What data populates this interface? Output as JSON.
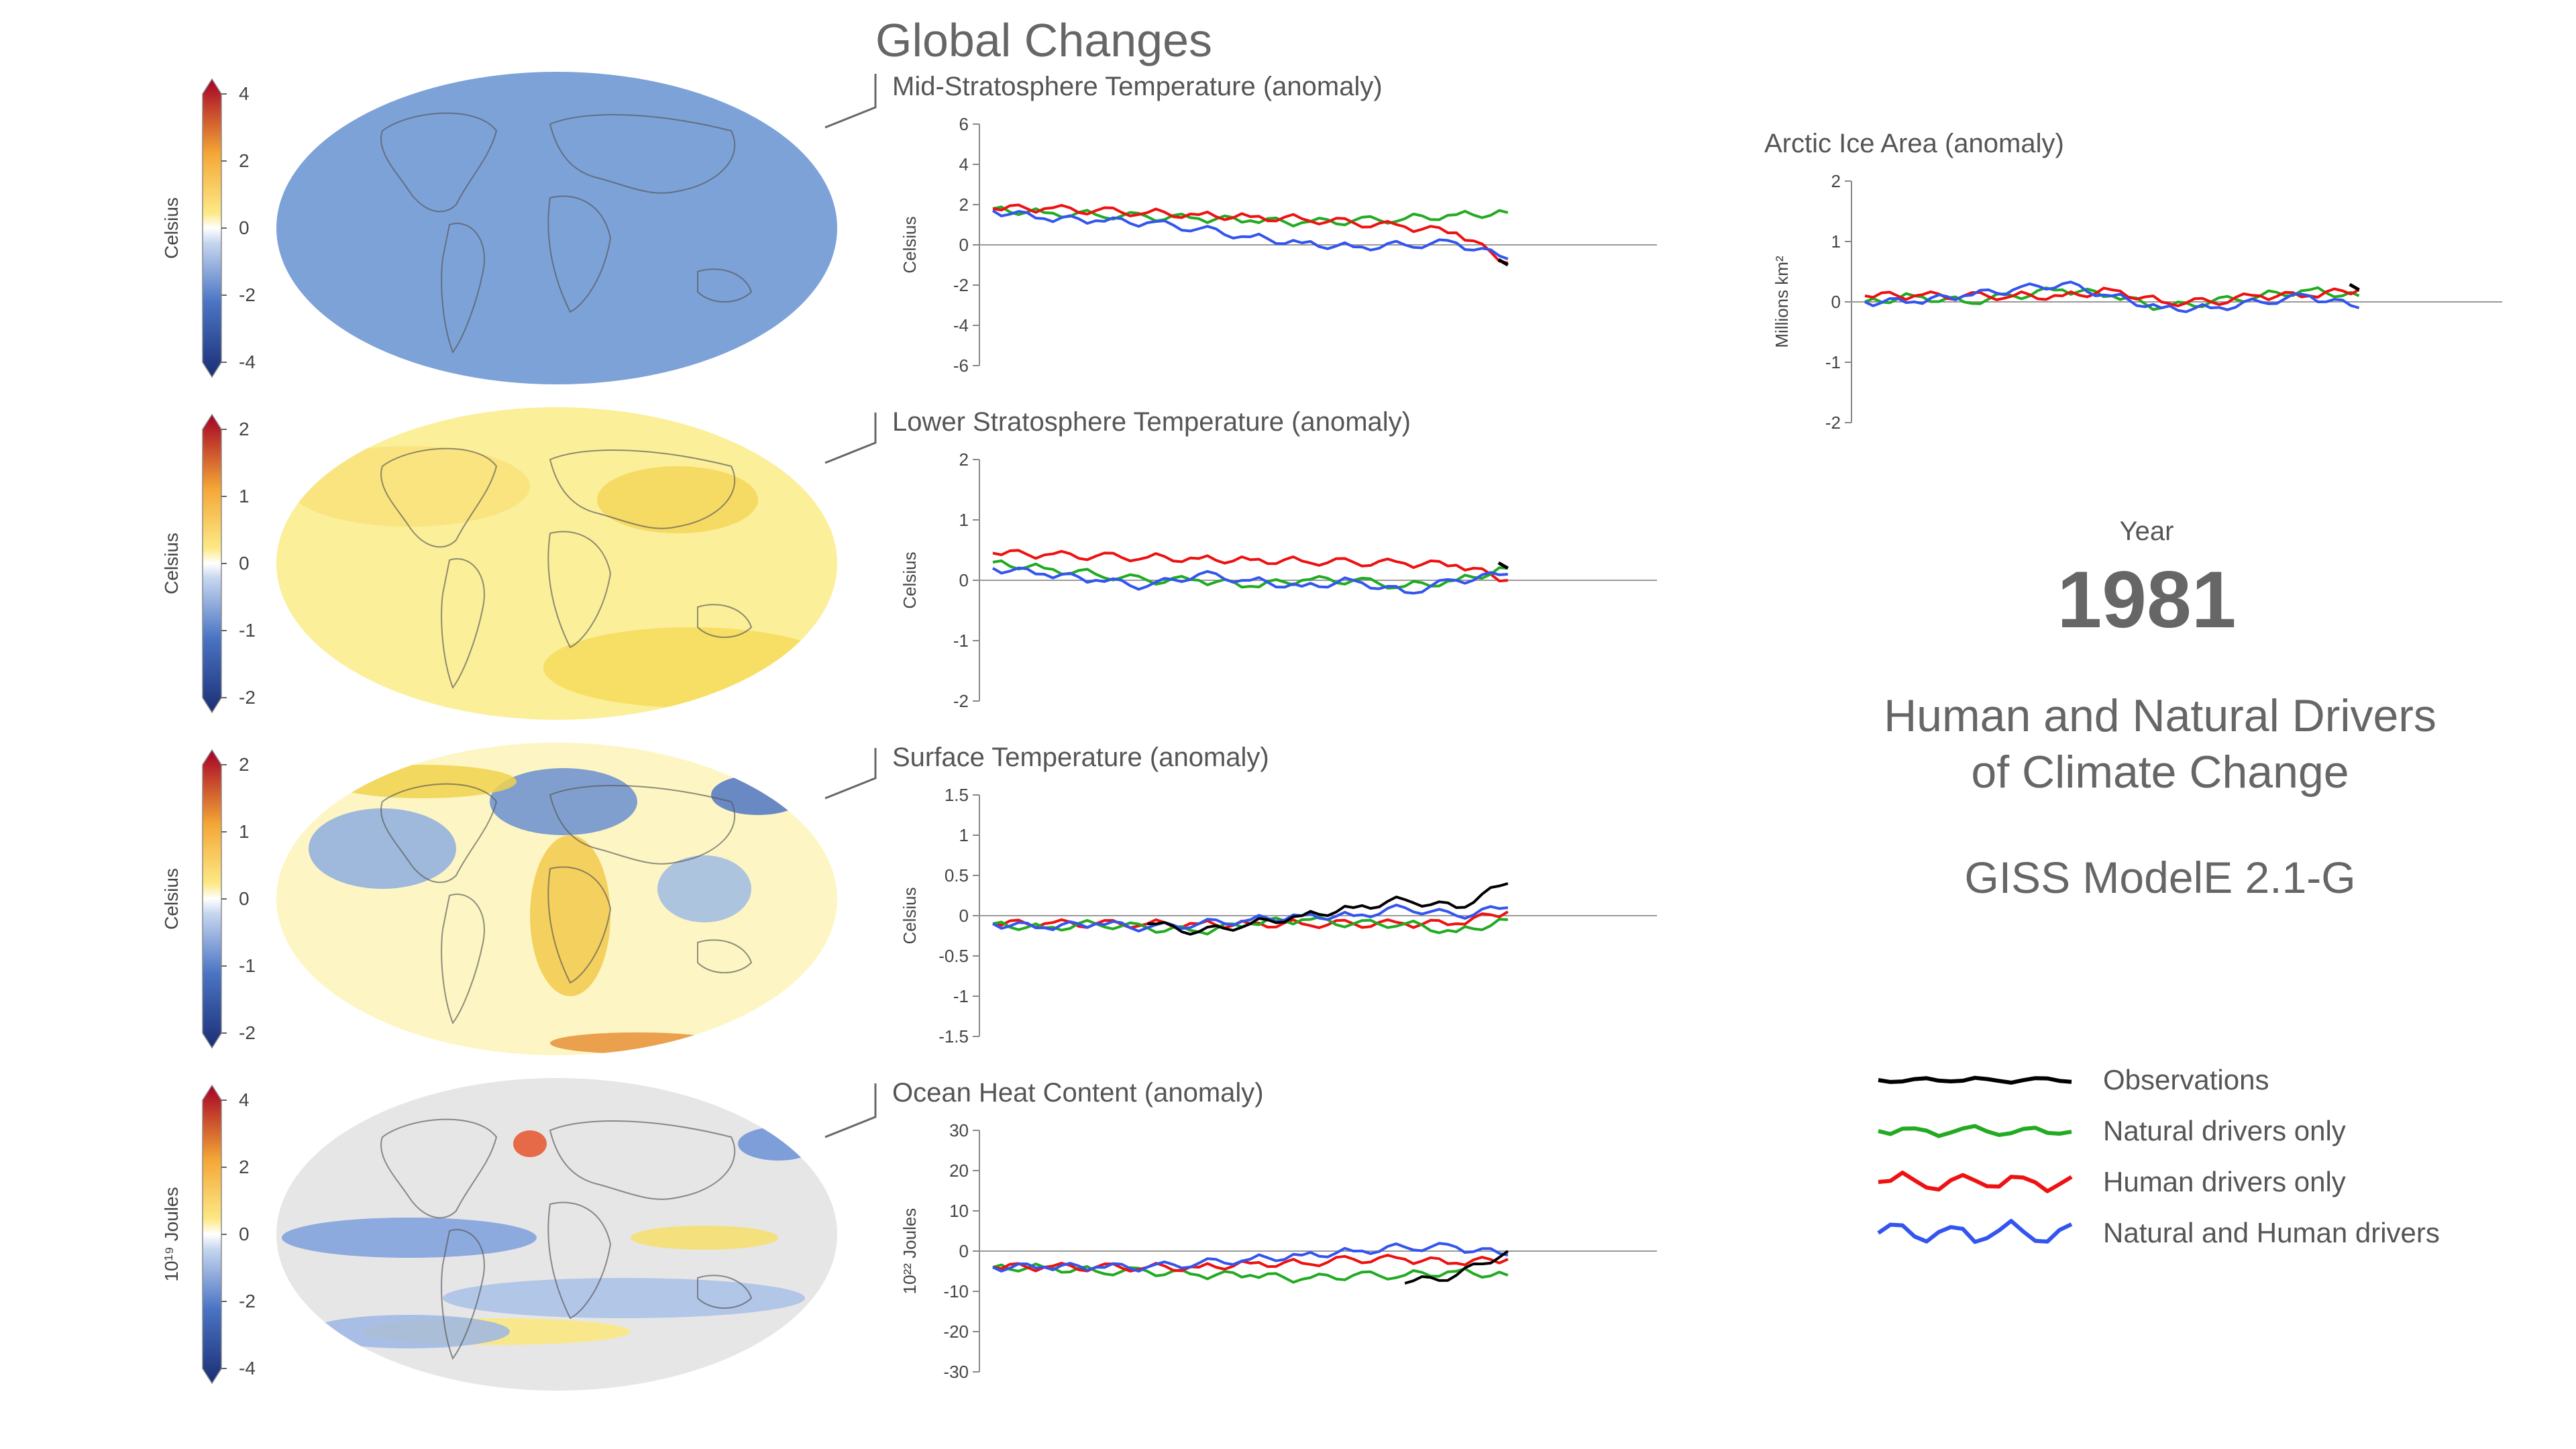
{
  "header": {
    "title": "Global Changes"
  },
  "year": {
    "label": "Year",
    "value": "1981"
  },
  "main_title": {
    "line1": "Human and Natural Drivers",
    "line2": "of Climate Change"
  },
  "model": {
    "name": "GISS ModelE 2.1-G"
  },
  "colors": {
    "observations": "#000000",
    "natural": "#22aa22",
    "human": "#ee1111",
    "natural_human": "#3355ee"
  },
  "legend": {
    "items": [
      {
        "label": "Observations",
        "color": "#000000"
      },
      {
        "label": "Natural drivers only",
        "color": "#22aa22"
      },
      {
        "label": "Human drivers only",
        "color": "#ee1111"
      },
      {
        "label": "Natural and Human drivers",
        "color": "#3355ee"
      }
    ]
  },
  "maps": [
    {
      "unit": "Celsius",
      "ticks": [
        "4",
        "2",
        "0",
        "-2",
        "-4"
      ],
      "scheme": "blue"
    },
    {
      "unit": "Celsius",
      "ticks": [
        "2",
        "1",
        "0",
        "-1",
        "-2"
      ],
      "scheme": "yellow"
    },
    {
      "unit": "Celsius",
      "ticks": [
        "2",
        "1",
        "0",
        "-1",
        "-2"
      ],
      "scheme": "mixed"
    },
    {
      "unit": "10¹⁹ Joules",
      "ticks": [
        "4",
        "2",
        "0",
        "-2",
        "-4"
      ],
      "scheme": "ocean"
    }
  ],
  "chart_data": [
    {
      "type": "line",
      "title": "Mid-Stratosphere Temperature (anomaly)",
      "ylabel": "Celsius",
      "ylim": [
        -6,
        6
      ],
      "yticks": [
        "6",
        "4",
        "2",
        "0",
        "-2",
        "-4",
        "-6"
      ],
      "x": [
        0,
        0.1,
        0.2,
        0.3,
        0.4,
        0.5,
        0.6,
        0.7,
        0.8,
        0.9,
        1.0
      ],
      "series": [
        {
          "key": "natural",
          "values": [
            1.8,
            1.6,
            1.5,
            1.4,
            1.3,
            1.2,
            1.1,
            1.2,
            1.3,
            1.5,
            1.6
          ]
        },
        {
          "key": "human",
          "values": [
            1.8,
            1.8,
            1.7,
            1.6,
            1.5,
            1.4,
            1.3,
            1.1,
            0.9,
            0.6,
            -0.9
          ]
        },
        {
          "key": "natural_human",
          "values": [
            1.7,
            1.3,
            1.2,
            1.1,
            0.8,
            0.4,
            0.1,
            -0.1,
            0.0,
            0.1,
            -0.7
          ]
        },
        {
          "key": "observations",
          "values": [
            null,
            null,
            null,
            null,
            null,
            null,
            null,
            null,
            null,
            null,
            -1.0
          ]
        }
      ]
    },
    {
      "type": "line",
      "title": "Lower Stratosphere Temperature (anomaly)",
      "ylabel": "Celsius",
      "ylim": [
        -2,
        2
      ],
      "yticks": [
        "2",
        "1",
        "0",
        "-1",
        "-2"
      ],
      "x": [
        0,
        0.1,
        0.2,
        0.3,
        0.4,
        0.5,
        0.6,
        0.7,
        0.8,
        0.9,
        1.0
      ],
      "series": [
        {
          "key": "human",
          "values": [
            0.45,
            0.42,
            0.4,
            0.38,
            0.36,
            0.34,
            0.32,
            0.3,
            0.28,
            0.25,
            0.0
          ]
        },
        {
          "key": "natural",
          "values": [
            0.3,
            0.2,
            0.1,
            0.0,
            0.0,
            -0.1,
            0.0,
            0.0,
            -0.1,
            0.0,
            0.2
          ]
        },
        {
          "key": "natural_human",
          "values": [
            0.2,
            0.1,
            0.0,
            -0.1,
            0.1,
            0.0,
            -0.1,
            0.0,
            -0.2,
            0.0,
            0.1
          ]
        },
        {
          "key": "observations",
          "values": [
            null,
            null,
            null,
            null,
            null,
            null,
            null,
            null,
            null,
            null,
            0.2
          ]
        }
      ]
    },
    {
      "type": "line",
      "title": "Surface Temperature (anomaly)",
      "ylabel": "Celsius",
      "ylim": [
        -1.5,
        1.5
      ],
      "yticks": [
        "1.5",
        "1",
        "0.5",
        "0",
        "-0.5",
        "-1",
        "-1.5"
      ],
      "x": [
        0,
        0.1,
        0.2,
        0.3,
        0.4,
        0.5,
        0.6,
        0.7,
        0.8,
        0.9,
        1.0
      ],
      "series": [
        {
          "key": "human",
          "values": [
            -0.1,
            -0.1,
            -0.1,
            -0.1,
            -0.1,
            -0.1,
            -0.1,
            -0.1,
            -0.1,
            -0.1,
            0.05
          ]
        },
        {
          "key": "natural",
          "values": [
            -0.1,
            -0.15,
            -0.1,
            -0.15,
            -0.2,
            -0.1,
            -0.05,
            -0.1,
            -0.1,
            -0.2,
            -0.05
          ]
        },
        {
          "key": "natural_human",
          "values": [
            -0.1,
            -0.15,
            -0.1,
            -0.15,
            -0.1,
            -0.05,
            0.0,
            0.0,
            0.1,
            0.0,
            0.1
          ]
        },
        {
          "key": "observations",
          "values": [
            null,
            null,
            null,
            -0.1,
            -0.2,
            -0.1,
            0.0,
            0.1,
            0.2,
            0.1,
            0.4
          ]
        }
      ]
    },
    {
      "type": "line",
      "title": "Ocean Heat Content (anomaly)",
      "ylabel": "10²² Joules",
      "ylim": [
        -30,
        30
      ],
      "yticks": [
        "30",
        "20",
        "10",
        "0",
        "-10",
        "-20",
        "-30"
      ],
      "x": [
        0,
        0.1,
        0.2,
        0.3,
        0.4,
        0.5,
        0.6,
        0.7,
        0.8,
        0.9,
        1.0
      ],
      "series": [
        {
          "key": "natural",
          "values": [
            -4,
            -4,
            -5,
            -5,
            -6,
            -6,
            -7,
            -6,
            -6,
            -5,
            -6
          ]
        },
        {
          "key": "human",
          "values": [
            -4,
            -4,
            -4,
            -4,
            -4,
            -3,
            -3,
            -2,
            -2,
            -3,
            -2
          ]
        },
        {
          "key": "natural_human",
          "values": [
            -4,
            -4,
            -4,
            -4,
            -3,
            -2,
            -1,
            0,
            1,
            1,
            -1
          ]
        },
        {
          "key": "observations",
          "values": [
            null,
            null,
            null,
            null,
            null,
            null,
            null,
            null,
            -8,
            -6,
            0
          ]
        }
      ]
    },
    {
      "type": "line",
      "title": "Arctic Ice Area (anomaly)",
      "ylabel": "Millions km²",
      "ylim": [
        -2,
        2
      ],
      "yticks": [
        "2",
        "1",
        "0",
        "-1",
        "-2"
      ],
      "x": [
        0,
        0.1,
        0.2,
        0.3,
        0.4,
        0.5,
        0.6,
        0.7,
        0.8,
        0.9,
        1.0
      ],
      "series": [
        {
          "key": "natural",
          "values": [
            0.0,
            0.1,
            0.0,
            0.1,
            0.2,
            0.1,
            -0.1,
            0.0,
            0.1,
            0.2,
            0.1
          ]
        },
        {
          "key": "human",
          "values": [
            0.1,
            0.1,
            0.1,
            0.1,
            0.1,
            0.2,
            0.0,
            0.0,
            0.1,
            0.1,
            0.2
          ]
        },
        {
          "key": "natural_human",
          "values": [
            0.0,
            0.0,
            0.1,
            0.2,
            0.3,
            0.1,
            -0.1,
            -0.1,
            0.0,
            0.1,
            -0.1
          ]
        },
        {
          "key": "observations",
          "values": [
            null,
            null,
            null,
            null,
            null,
            null,
            null,
            null,
            null,
            null,
            0.2
          ]
        }
      ]
    }
  ]
}
